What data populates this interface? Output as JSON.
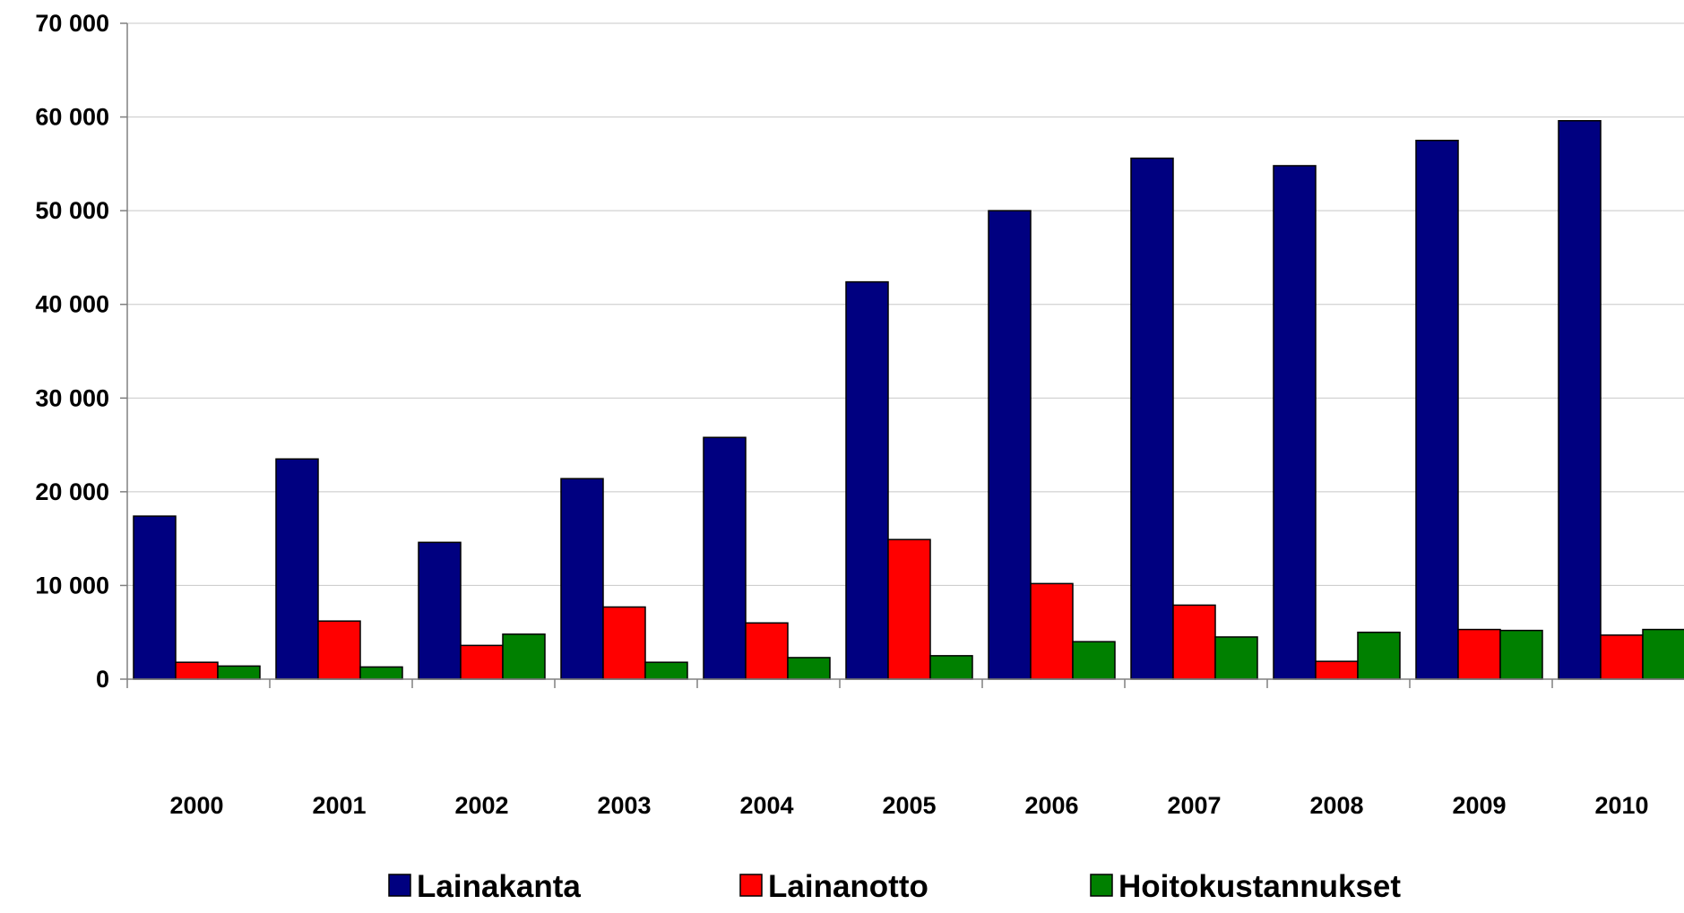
{
  "chart_data": {
    "type": "bar",
    "categories": [
      "2000",
      "2001",
      "2002",
      "2003",
      "2004",
      "2005",
      "2006",
      "2007",
      "2008",
      "2009",
      "2010"
    ],
    "series": [
      {
        "name": "Lainakanta",
        "color": "#000080",
        "values": [
          17400,
          23500,
          14600,
          21400,
          25800,
          42400,
          50000,
          55600,
          54800,
          57500,
          59600
        ]
      },
      {
        "name": "Lainanotto",
        "color": "#ff0000",
        "values": [
          1800,
          6200,
          3600,
          7700,
          6000,
          14900,
          10200,
          7900,
          1900,
          5300,
          4700
        ]
      },
      {
        "name": "Hoitokustannukset",
        "color": "#008000",
        "values": [
          1400,
          1300,
          4800,
          1800,
          2300,
          2500,
          4000,
          4500,
          5000,
          5200,
          5300
        ]
      }
    ],
    "y_ticks": [
      "0",
      "10 000",
      "20 000",
      "30 000",
      "40 000",
      "50 000",
      "60 000",
      "70 000"
    ],
    "ylim": [
      0,
      70000
    ],
    "y_tick_step": 10000,
    "grid": true,
    "legend": "bottom"
  }
}
